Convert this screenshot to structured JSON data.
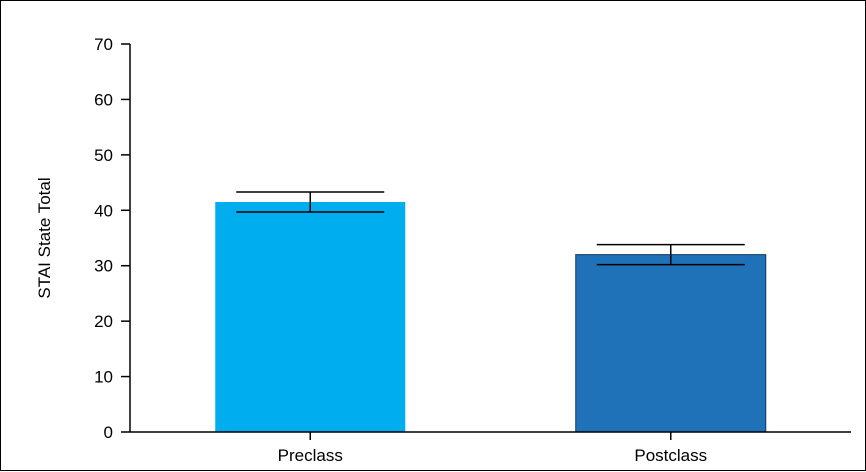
{
  "chart_data": {
    "type": "bar",
    "title": "",
    "xlabel": "",
    "ylabel": "STAI State Total",
    "ylim": [
      0,
      70
    ],
    "yticks": [
      0,
      10,
      20,
      30,
      40,
      50,
      60,
      70
    ],
    "grid": false,
    "categories": [
      "Preclass",
      "Postclass"
    ],
    "values": [
      41.5,
      32.0
    ],
    "error": [
      1.8,
      1.8
    ],
    "colors": [
      "#00adee",
      "#1f72b8"
    ]
  }
}
